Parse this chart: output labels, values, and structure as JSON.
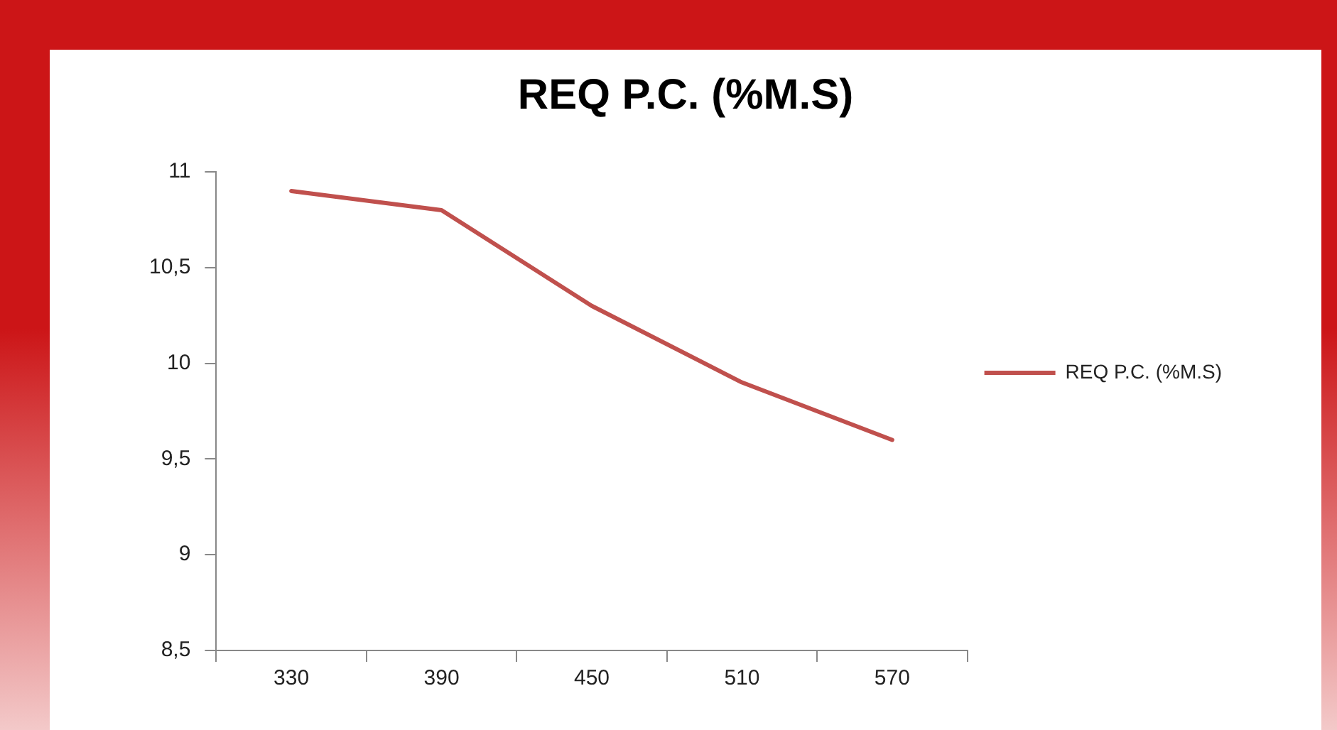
{
  "chart_data": {
    "type": "line",
    "title": "REQ P.C. (%M.S)",
    "categories": [
      "330",
      "390",
      "450",
      "510",
      "570"
    ],
    "series": [
      {
        "name": "REQ P.C. (%M.S)",
        "color": "#c0504d",
        "values": [
          10.9,
          10.8,
          10.3,
          9.9,
          9.6
        ]
      }
    ],
    "ylim": [
      8.5,
      11
    ],
    "yticks": [
      {
        "value": 8.5,
        "label": "8,5"
      },
      9,
      {
        "value": 9.5,
        "label": "9,5"
      },
      10,
      {
        "value": 10.5,
        "label": "10,5"
      },
      11
    ],
    "grid": false,
    "legend": "right",
    "marker": "none",
    "line_style": "solid"
  }
}
